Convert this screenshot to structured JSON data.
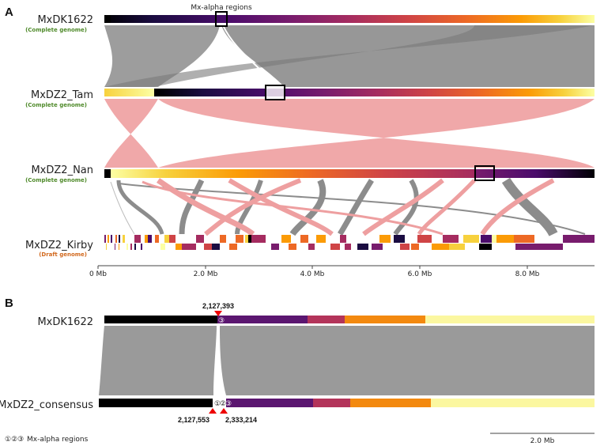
{
  "panel_a": {
    "letter": "A",
    "annotation": "Mx-alpha regions",
    "genomes": [
      {
        "name": "MxDK1622",
        "subtitle": "(Complete genome)",
        "subtitle_color": "#4f8a2a"
      },
      {
        "name": "MxDZ2_Tam",
        "subtitle": "(Complete genome)",
        "subtitle_color": "#4f8a2a"
      },
      {
        "name": "MxDZ2_Nan",
        "subtitle": "(Complete genome)",
        "subtitle_color": "#4f8a2a"
      },
      {
        "name": "MxDZ2_Kirby",
        "subtitle": "(Draft genome)",
        "subtitle_color": "#d2691e"
      }
    ],
    "axis_ticks": [
      "0 Mb",
      "2.0 Mb",
      "4.0 Mb",
      "6.0 Mb",
      "8.0 Mb"
    ],
    "colors": {
      "forward": "#8c8c8c",
      "inverted": "#ee9fa0"
    }
  },
  "panel_b": {
    "letter": "B",
    "genomes": [
      {
        "name": "MxDK1622"
      },
      {
        "name": "MxDZ2_consensus"
      }
    ],
    "positions": {
      "top": "2,127,393",
      "bottom_left": "2,127,553",
      "bottom_right": "2,333,214"
    },
    "region_marks": {
      "top": "③",
      "bottom": [
        "①",
        "②",
        "③"
      ]
    },
    "legend": {
      "symbols": "①②③",
      "label": "Mx-alpha regions"
    },
    "scale_bar": "2.0 Mb"
  }
}
